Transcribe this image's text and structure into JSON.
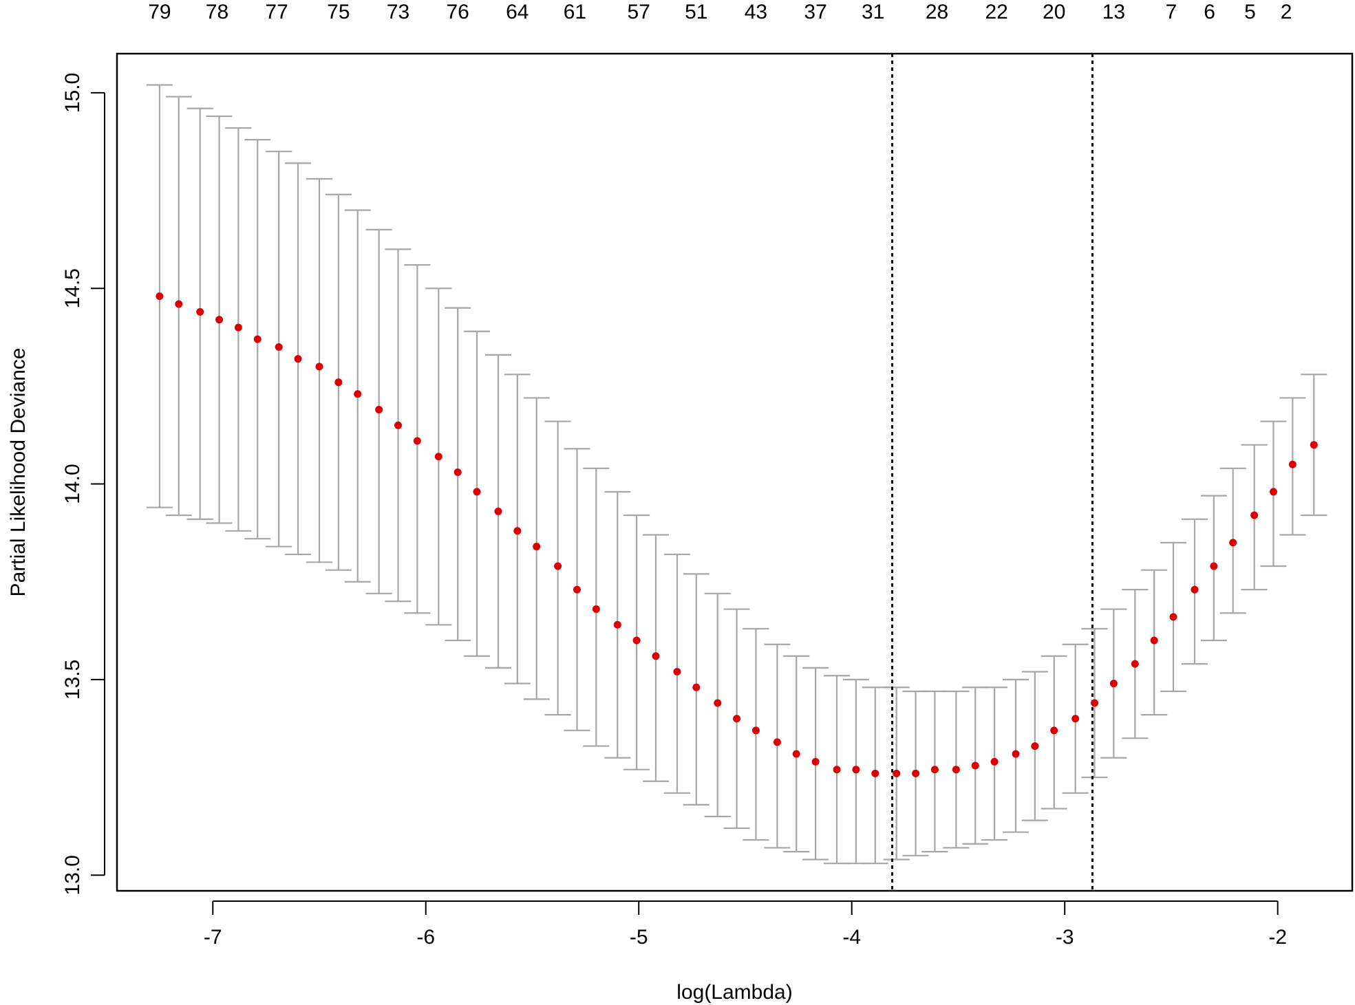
{
  "chart_data": {
    "type": "scatter",
    "xlabel": "log(Lambda)",
    "ylabel": "Partial Likelihood Deviance",
    "xlim": [
      -7.45,
      -1.65
    ],
    "ylim": [
      12.96,
      15.1
    ],
    "x_ticks": [
      -7,
      -6,
      -5,
      -4,
      -3,
      -2
    ],
    "y_ticks": [
      13.0,
      13.5,
      14.0,
      14.5,
      15.0
    ],
    "x_tick_labels": [
      "-7",
      "-6",
      "-5",
      "-4",
      "-3",
      "-2"
    ],
    "y_tick_labels": [
      "13.0",
      "13.5",
      "14.0",
      "14.5",
      "15.0"
    ],
    "grid": false,
    "colors": {
      "point": "#dd0000",
      "errorbar": "#a6a6a6",
      "frame": "#000000",
      "vline": "#000000"
    },
    "top_axis": {
      "x": [
        -7.25,
        -6.98,
        -6.7,
        -6.41,
        -6.13,
        -5.85,
        -5.57,
        -5.3,
        -5.0,
        -4.73,
        -4.45,
        -4.17,
        -3.9,
        -3.6,
        -3.32,
        -3.05,
        -2.77,
        -2.5,
        -2.32,
        -2.13,
        -1.96
      ],
      "labels": [
        "79",
        "78",
        "77",
        "75",
        "73",
        "76",
        "64",
        "61",
        "57",
        "51",
        "43",
        "37",
        "31",
        "28",
        "22",
        "20",
        "13",
        "7",
        "6",
        "5",
        "2"
      ]
    },
    "vlines": [
      -3.81,
      -2.87
    ],
    "series": [
      {
        "x": [
          -7.25,
          -7.16,
          -7.06,
          -6.97,
          -6.88,
          -6.79,
          -6.69,
          -6.6,
          -6.5,
          -6.41,
          -6.32,
          -6.22,
          -6.13,
          -6.04,
          -5.94,
          -5.85,
          -5.76,
          -5.66,
          -5.57,
          -5.48,
          -5.38,
          -5.29,
          -5.2,
          -5.1,
          -5.01,
          -4.92,
          -4.82,
          -4.73,
          -4.63,
          -4.54,
          -4.45,
          -4.35,
          -4.26,
          -4.17,
          -4.07,
          -3.98,
          -3.89,
          -3.79,
          -3.7,
          -3.61,
          -3.51,
          -3.42,
          -3.33,
          -3.23,
          -3.14,
          -3.05,
          -2.95,
          -2.86,
          -2.77,
          -2.67,
          -2.58,
          -2.49,
          -2.39,
          -2.3,
          -2.21,
          -2.11,
          -2.02,
          -1.93,
          -1.83
        ],
        "y": [
          14.48,
          14.46,
          14.44,
          14.42,
          14.4,
          14.37,
          14.35,
          14.32,
          14.3,
          14.26,
          14.23,
          14.19,
          14.15,
          14.11,
          14.07,
          14.03,
          13.98,
          13.93,
          13.88,
          13.84,
          13.79,
          13.73,
          13.68,
          13.64,
          13.6,
          13.56,
          13.52,
          13.48,
          13.44,
          13.4,
          13.37,
          13.34,
          13.31,
          13.29,
          13.27,
          13.27,
          13.26,
          13.26,
          13.26,
          13.27,
          13.27,
          13.28,
          13.29,
          13.31,
          13.33,
          13.37,
          13.4,
          13.44,
          13.49,
          13.54,
          13.6,
          13.66,
          13.73,
          13.79,
          13.85,
          13.92,
          13.98,
          14.05,
          14.1
        ],
        "upper": [
          15.02,
          14.99,
          14.96,
          14.94,
          14.91,
          14.88,
          14.85,
          14.82,
          14.78,
          14.74,
          14.7,
          14.65,
          14.6,
          14.56,
          14.5,
          14.45,
          14.39,
          14.33,
          14.28,
          14.22,
          14.16,
          14.09,
          14.04,
          13.98,
          13.92,
          13.87,
          13.82,
          13.77,
          13.72,
          13.68,
          13.63,
          13.59,
          13.56,
          13.53,
          13.51,
          13.5,
          13.48,
          13.48,
          13.47,
          13.47,
          13.47,
          13.48,
          13.48,
          13.5,
          13.52,
          13.56,
          13.59,
          13.63,
          13.68,
          13.73,
          13.78,
          13.85,
          13.91,
          13.97,
          14.04,
          14.1,
          14.16,
          14.22,
          14.28
        ],
        "lower": [
          13.94,
          13.92,
          13.91,
          13.9,
          13.88,
          13.86,
          13.84,
          13.82,
          13.8,
          13.78,
          13.75,
          13.72,
          13.7,
          13.67,
          13.64,
          13.6,
          13.56,
          13.53,
          13.49,
          13.45,
          13.41,
          13.37,
          13.33,
          13.3,
          13.27,
          13.24,
          13.21,
          13.18,
          13.15,
          13.12,
          13.09,
          13.07,
          13.06,
          13.04,
          13.03,
          13.03,
          13.03,
          13.04,
          13.05,
          13.06,
          13.07,
          13.08,
          13.09,
          13.11,
          13.14,
          13.17,
          13.21,
          13.25,
          13.3,
          13.35,
          13.41,
          13.47,
          13.54,
          13.6,
          13.67,
          13.73,
          13.79,
          13.87,
          13.92
        ]
      }
    ]
  }
}
